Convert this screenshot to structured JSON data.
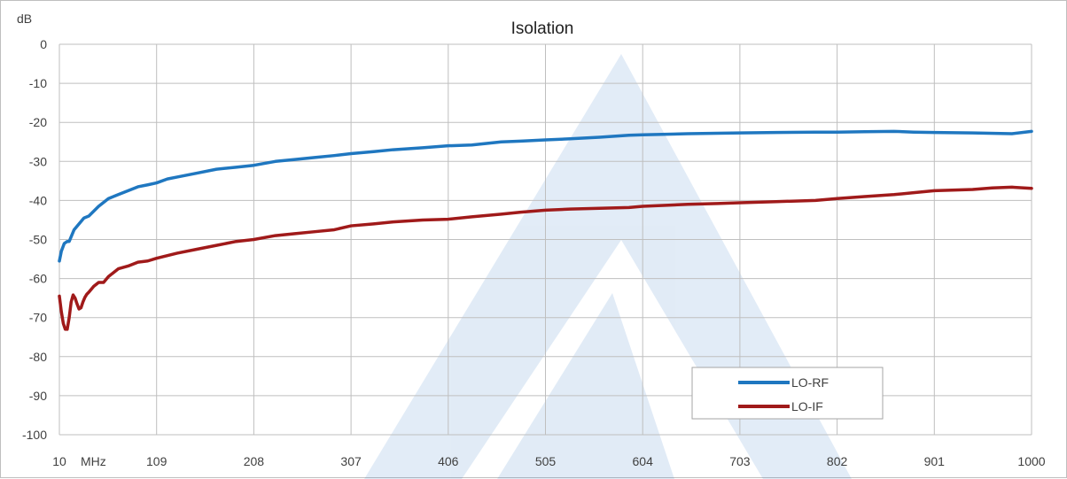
{
  "chart_data": {
    "type": "line",
    "title": "Isolation",
    "ylabel": "dB",
    "xlabel": "MHz",
    "xlim": [
      10,
      1000
    ],
    "ylim": [
      -100,
      0
    ],
    "x_ticks": [
      "10",
      "109",
      "208",
      "307",
      "406",
      "505",
      "604",
      "703",
      "802",
      "901",
      "1000"
    ],
    "y_ticks": [
      "0",
      "-10",
      "-20",
      "-30",
      "-40",
      "-50",
      "-60",
      "-70",
      "-80",
      "-90",
      "-100"
    ],
    "grid": true,
    "legend_position": "bottom-right",
    "watermark": "stylized triangle logo",
    "series": [
      {
        "name": "LO-RF",
        "color": "#1f77c0",
        "x": [
          10,
          12,
          15,
          18,
          20,
          25,
          30,
          35,
          40,
          50,
          60,
          70,
          80,
          90,
          100,
          109,
          120,
          130,
          150,
          170,
          190,
          208,
          230,
          250,
          270,
          290,
          307,
          330,
          350,
          380,
          406,
          430,
          460,
          480,
          505,
          530,
          560,
          590,
          604,
          650,
          680,
          703,
          740,
          780,
          802,
          830,
          860,
          880,
          901,
          940,
          980,
          1000
        ],
        "y": [
          -55.5,
          -53,
          -51,
          -50.5,
          -50.5,
          -47.5,
          -46,
          -44.5,
          -44,
          -41.5,
          -39.5,
          -38.5,
          -37.5,
          -36.5,
          -36,
          -35.5,
          -34.5,
          -34,
          -33,
          -32,
          -31.5,
          -31,
          -30,
          -29.5,
          -29,
          -28.5,
          -28,
          -27.5,
          -27,
          -26.5,
          -26,
          -25.8,
          -25,
          -24.8,
          -24.5,
          -24.2,
          -23.8,
          -23.3,
          -23.2,
          -22.9,
          -22.8,
          -22.7,
          -22.6,
          -22.5,
          -22.5,
          -22.4,
          -22.3,
          -22.5,
          -22.6,
          -22.7,
          -22.9,
          -22.3
        ]
      },
      {
        "name": "LO-IF",
        "color": "#a01a1a",
        "x": [
          10,
          12,
          14,
          16,
          18,
          20,
          22,
          24,
          26,
          28,
          30,
          32,
          34,
          36,
          38,
          40,
          45,
          50,
          55,
          60,
          70,
          80,
          90,
          100,
          109,
          130,
          150,
          170,
          190,
          208,
          230,
          250,
          270,
          290,
          307,
          330,
          350,
          380,
          406,
          430,
          460,
          480,
          505,
          530,
          560,
          590,
          604,
          650,
          680,
          703,
          740,
          780,
          802,
          830,
          860,
          880,
          901,
          940,
          960,
          980,
          1000
        ],
        "y": [
          -64.5,
          -68.5,
          -71.5,
          -73,
          -73,
          -70,
          -66,
          -64.2,
          -65,
          -66.5,
          -67.8,
          -67.5,
          -66,
          -64.8,
          -64,
          -63.5,
          -62,
          -61,
          -61,
          -59.5,
          -57.5,
          -56.8,
          -55.8,
          -55.5,
          -54.8,
          -53.5,
          -52.5,
          -51.5,
          -50.5,
          -50,
          -49,
          -48.5,
          -48,
          -47.5,
          -46.5,
          -46,
          -45.5,
          -45,
          -44.8,
          -44.2,
          -43.5,
          -43,
          -42.5,
          -42.2,
          -42,
          -41.8,
          -41.5,
          -41,
          -40.8,
          -40.6,
          -40.3,
          -40,
          -39.5,
          -39,
          -38.5,
          -38,
          -37.5,
          -37.2,
          -36.8,
          -36.6,
          -36.9
        ]
      }
    ]
  }
}
